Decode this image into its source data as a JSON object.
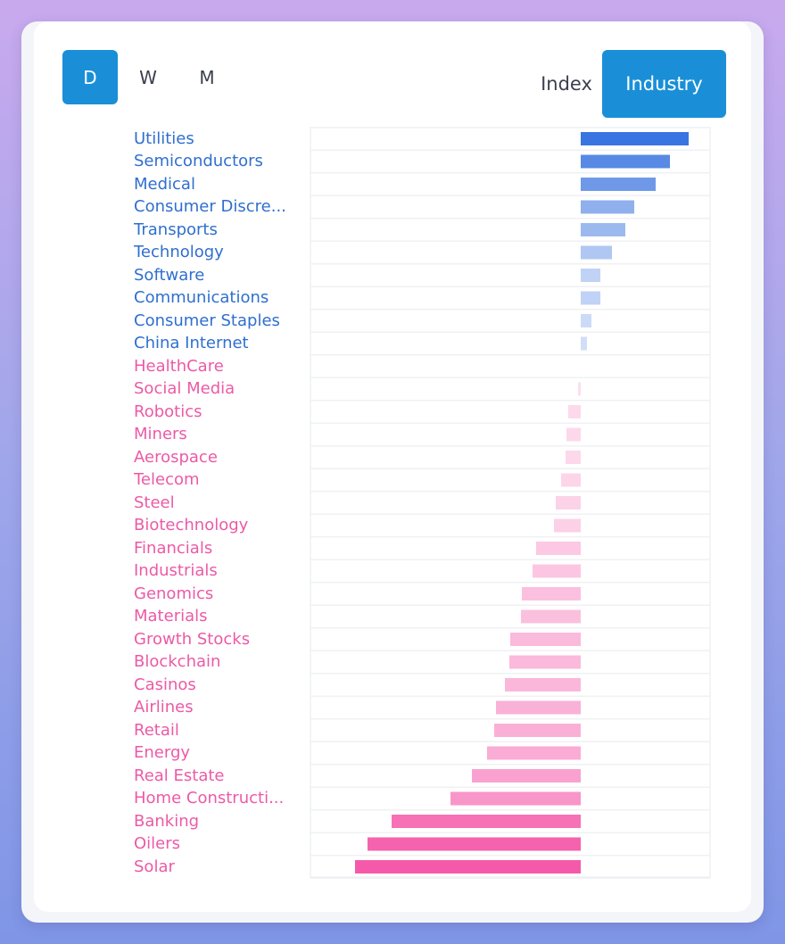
{
  "period_toggle": {
    "options": [
      "D",
      "W",
      "M"
    ],
    "selected": "D"
  },
  "view_toggle": {
    "options": [
      "Index",
      "Industry"
    ],
    "selected": "Industry"
  },
  "colors": {
    "accent": "#1a8fd8",
    "positive_label": "#2f6fcf",
    "negative_label": "#ec5aa6",
    "positive_bar": "#3a74e0",
    "negative_bar": "#f55aaa"
  },
  "chart_data": {
    "type": "bar",
    "orientation": "horizontal",
    "categories": [
      "Utilities",
      "Semiconductors",
      "Medical",
      "Consumer Discretionary",
      "Transports",
      "Technology",
      "Software",
      "Communications",
      "Consumer Staples",
      "China Internet",
      "HealthCare",
      "Social Media",
      "Robotics",
      "Miners",
      "Aerospace",
      "Telecom",
      "Steel",
      "Biotechnology",
      "Financials",
      "Industrials",
      "Genomics",
      "Materials",
      "Growth Stocks",
      "Blockchain",
      "Casinos",
      "Airlines",
      "Retail",
      "Energy",
      "Real Estate",
      "Home Construction",
      "Banking",
      "Oilers",
      "Solar"
    ],
    "display_labels": [
      "Utilities",
      "Semiconductors",
      "Medical",
      "Consumer Discre...",
      "Transports",
      "Technology",
      "Software",
      "Communications",
      "Consumer Staples",
      "China Internet",
      "HealthCare",
      "Social Media",
      "Robotics",
      "Miners",
      "Aerospace",
      "Telecom",
      "Steel",
      "Biotechnology",
      "Financials",
      "Industrials",
      "Genomics",
      "Materials",
      "Growth Stocks",
      "Blockchain",
      "Casinos",
      "Airlines",
      "Retail",
      "Energy",
      "Real Estate",
      "Home Constructi...",
      "Banking",
      "Oilers",
      "Solar"
    ],
    "values": [
      1.21,
      1.0,
      0.84,
      0.6,
      0.5,
      0.35,
      0.22,
      0.22,
      0.12,
      0.07,
      0.0,
      -0.03,
      -0.14,
      -0.16,
      -0.17,
      -0.22,
      -0.28,
      -0.3,
      -0.5,
      -0.54,
      -0.66,
      -0.67,
      -0.79,
      -0.8,
      -0.85,
      -0.95,
      -0.97,
      -1.05,
      -1.22,
      -1.46,
      -2.12,
      -2.39,
      -2.53
    ],
    "xlim": [
      -3.03,
      1.45
    ],
    "grid": true,
    "title": "",
    "xlabel": "",
    "ylabel": ""
  }
}
